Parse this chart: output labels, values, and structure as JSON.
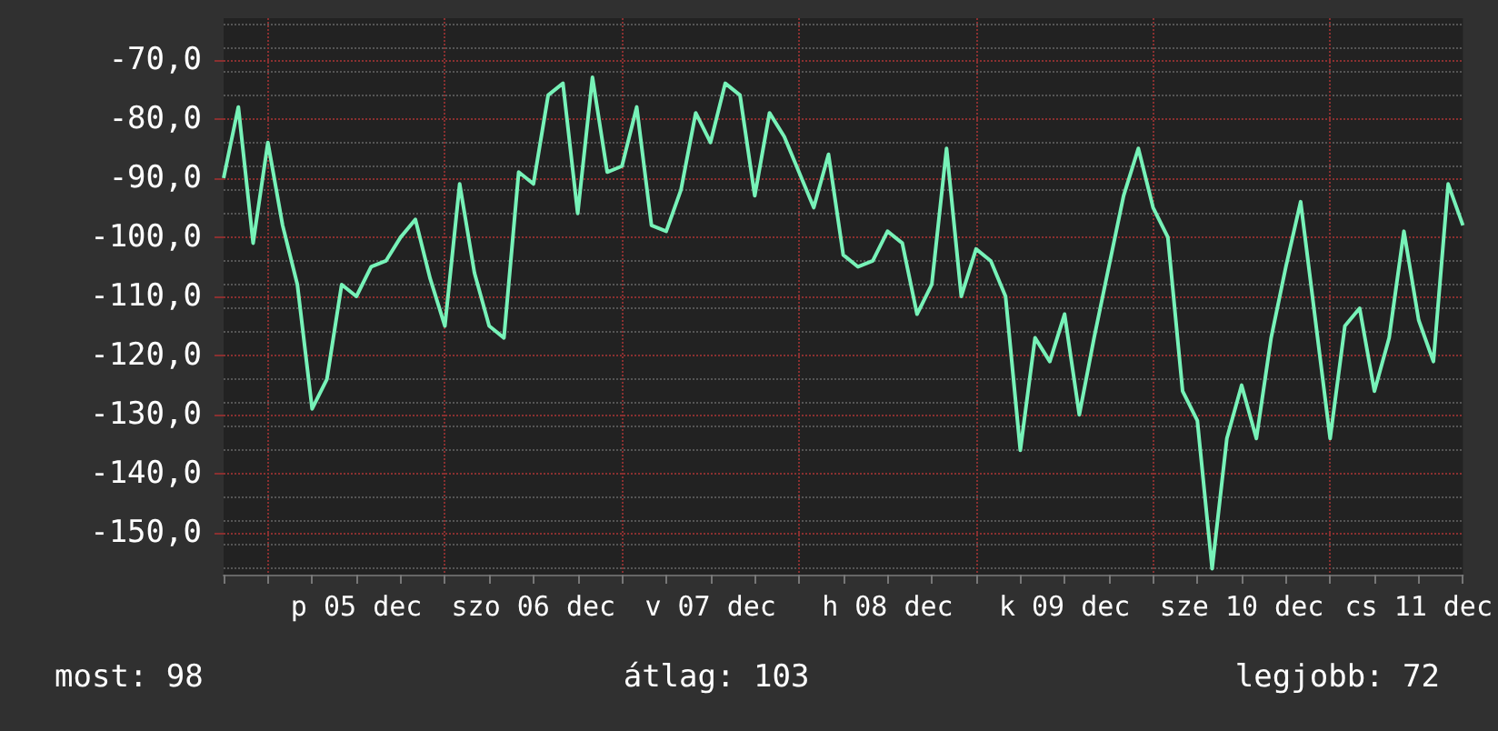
{
  "chart_data": {
    "type": "line",
    "categories": [
      null,
      null,
      null,
      null,
      null,
      null,
      null,
      null,
      null,
      "p 05 dec",
      null,
      null,
      null,
      null,
      null,
      null,
      null,
      null,
      null,
      null,
      null,
      "szo 06 dec",
      null,
      null,
      null,
      null,
      null,
      null,
      null,
      null,
      null,
      null,
      null,
      "v 07 dec",
      null,
      null,
      null,
      null,
      null,
      null,
      null,
      null,
      null,
      null,
      null,
      "h 08 dec",
      null,
      null,
      null,
      null,
      null,
      null,
      null,
      null,
      null,
      null,
      null,
      "k 09 dec",
      null,
      null,
      null,
      null,
      null,
      null,
      null,
      null,
      null,
      null,
      null,
      "sze 10 dec",
      null,
      null,
      null,
      null,
      null,
      null,
      null,
      null,
      null,
      null,
      null,
      "cs 11 dec",
      null,
      null,
      null
    ],
    "series": [
      {
        "color": "#77f2b8",
        "values": [
          -90,
          -78,
          -101,
          -84,
          -98,
          -108,
          -129,
          -124,
          -108,
          -110,
          -105,
          -104,
          -100,
          -97,
          -107,
          -115,
          -91,
          -106,
          -115,
          -117,
          -89,
          -91,
          -76,
          -74,
          -96,
          -73,
          -89,
          -88,
          -78,
          -98,
          -99,
          -92,
          -79,
          -84,
          -74,
          -76,
          -93,
          -79,
          -83,
          -89,
          -95,
          -86,
          -103,
          -105,
          -104,
          -99,
          -101,
          -113,
          -108,
          -85,
          -110,
          -102,
          -104,
          -110,
          -136,
          -117,
          -121,
          -113,
          -130,
          -117,
          -105,
          -93,
          -85,
          -95,
          -100,
          -126,
          -131,
          -156,
          -134,
          -125,
          -134,
          -117,
          -105,
          -94,
          -114,
          -134,
          -115,
          -112,
          -126,
          -117,
          -99,
          -114,
          -121,
          -91,
          -98
        ]
      }
    ],
    "ylim": [
      -157,
      -63
    ],
    "yticks": [
      {
        "value": -150,
        "label": "-150,0"
      },
      {
        "value": -140,
        "label": "-140,0"
      },
      {
        "value": -130,
        "label": "-130,0"
      },
      {
        "value": -120,
        "label": "-120,0"
      },
      {
        "value": -110,
        "label": "-110,0"
      },
      {
        "value": -100,
        "label": "-100,0"
      },
      {
        "value": -90,
        "label": "-90,0"
      },
      {
        "value": -80,
        "label": "-80,0"
      },
      {
        "value": -70,
        "label": "-70,0"
      }
    ],
    "grid": true,
    "annotations": [
      "most: 98",
      "átlag: 103",
      "legjobb: 72"
    ]
  }
}
